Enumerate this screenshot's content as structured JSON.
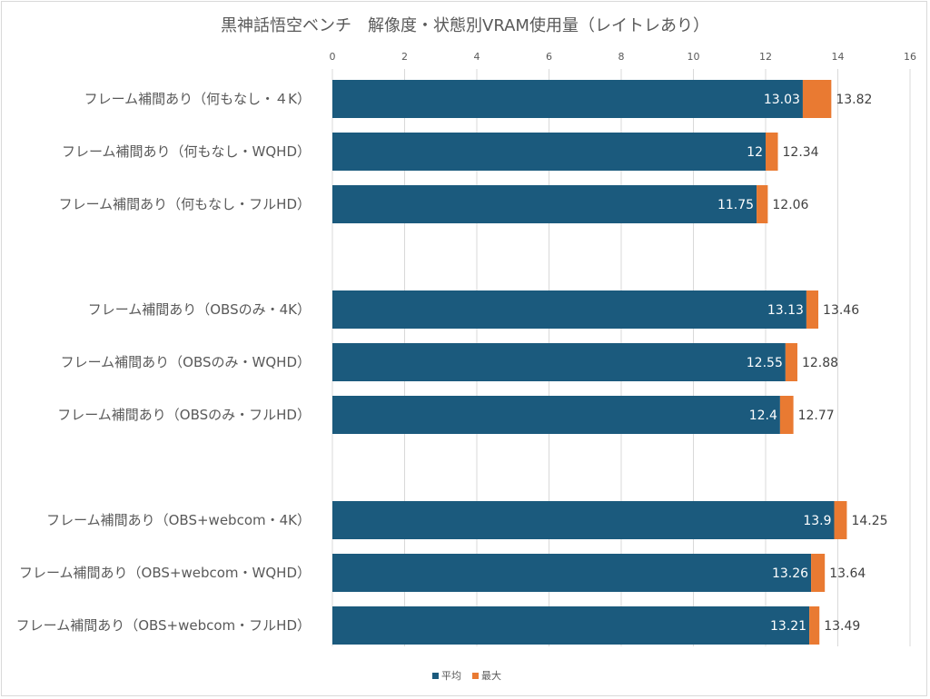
{
  "chart_data": {
    "type": "bar",
    "orientation": "horizontal",
    "stacked": true,
    "title": "黒神話悟空ベンチ　解像度・状態別VRAM使用量（レイトレあり）",
    "xlim": [
      0,
      16
    ],
    "xticks": [
      0,
      2,
      4,
      6,
      8,
      10,
      12,
      14,
      16
    ],
    "grid": true,
    "legend_position": "bottom",
    "colors": {
      "avg": "#1b5a7d",
      "max": "#e97a32"
    },
    "groups": [
      {
        "items": [
          {
            "label": "フレーム補間あり（何もなし・４K）",
            "avg": 13.03,
            "max": 13.82
          },
          {
            "label": "フレーム補間あり（何もなし・WQHD）",
            "avg": 12,
            "max": 12.34
          },
          {
            "label": "フレーム補間あり（何もなし・フルHD）",
            "avg": 11.75,
            "max": 12.06
          }
        ]
      },
      {
        "items": [
          {
            "label": "フレーム補間あり（OBSのみ・4K）",
            "avg": 13.13,
            "max": 13.46
          },
          {
            "label": "フレーム補間あり（OBSのみ・WQHD）",
            "avg": 12.55,
            "max": 12.88
          },
          {
            "label": "フレーム補間あり（OBSのみ・フルHD）",
            "avg": 12.4,
            "max": 12.77
          }
        ]
      },
      {
        "items": [
          {
            "label": "フレーム補間あり（OBS+webcom・4K）",
            "avg": 13.9,
            "max": 14.25
          },
          {
            "label": "フレーム補間あり（OBS+webcom・WQHD）",
            "avg": 13.26,
            "max": 13.64
          },
          {
            "label": "フレーム補間あり（OBS+webcom・フルHD）",
            "avg": 13.21,
            "max": 13.49
          }
        ]
      }
    ],
    "series": [
      {
        "name": "平均",
        "key": "avg"
      },
      {
        "name": "最大",
        "key": "max"
      }
    ]
  }
}
